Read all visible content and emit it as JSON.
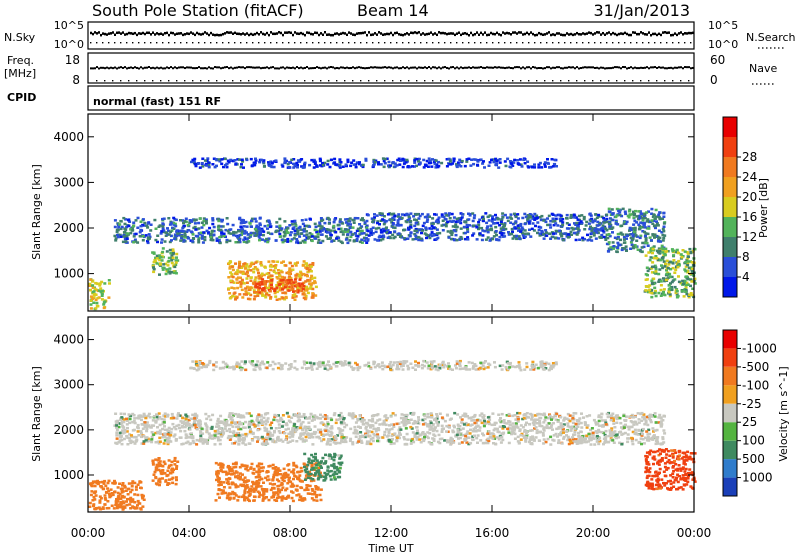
{
  "header": {
    "station": "South Pole Station (fitACF)",
    "beam": "Beam 14",
    "date": "31/Jan/2013"
  },
  "status_panel": {
    "n_sky_label": "N.Sky",
    "n_search_label": "N.Search",
    "freq_label_1": "Freq.",
    "freq_label_2": "[MHz]",
    "nave_label": "Nave",
    "cpid_label": "CPID",
    "cpid_value": "normal (fast) 151 RF",
    "noise_ticks_left": [
      "10^5",
      "10^0"
    ],
    "noise_ticks_right": [
      "10^5",
      "10^0"
    ],
    "freq_ticks": [
      "18",
      "8"
    ],
    "nave_ticks": [
      "60",
      "0"
    ]
  },
  "x_axis": {
    "label": "Time UT",
    "ticks": [
      "00:00",
      "04:00",
      "08:00",
      "12:00",
      "16:00",
      "20:00",
      "00:00"
    ]
  },
  "colors": {
    "power_scale": [
      "#0018e8",
      "#2a4fd8",
      "#3f7f6c",
      "#52b35a",
      "#d8cc20",
      "#f0a020",
      "#f07a20",
      "#f04010",
      "#e80000"
    ],
    "velocity_scale": [
      "#1a3fb8",
      "#2f7ccc",
      "#3f8a60",
      "#54b440",
      "#c8c8c0",
      "#f0a020",
      "#f07a20",
      "#f04010",
      "#e80000"
    ],
    "frame": "#000000"
  },
  "chart_data": [
    {
      "type": "heatmap",
      "title": "",
      "xlabel": "Time UT",
      "ylabel": "Slant Range [km]",
      "xlim": [
        0,
        24
      ],
      "ylim": [
        180,
        4500
      ],
      "y_ticks": [
        1000,
        2000,
        3000,
        4000
      ],
      "colorbar": {
        "label": "Power [dB]",
        "levels": [
          0,
          4,
          8,
          12,
          16,
          20,
          24,
          28,
          32
        ],
        "tick_labels": [
          "4",
          "8",
          "12",
          "16",
          "20",
          "24",
          "28"
        ]
      },
      "echo_regions": [
        {
          "t_start": 0.0,
          "t_end": 0.8,
          "range_low": 250,
          "range_high": 900,
          "power_db": 17
        },
        {
          "t_start": 2.5,
          "t_end": 3.5,
          "range_low": 1000,
          "range_high": 1600,
          "power_db": 14
        },
        {
          "t_start": 1.0,
          "t_end": 11.0,
          "range_low": 1700,
          "range_high": 2250,
          "power_db": 8
        },
        {
          "t_start": 11.0,
          "t_end": 20.5,
          "range_low": 1750,
          "range_high": 2350,
          "power_db": 7
        },
        {
          "t_start": 20.5,
          "t_end": 22.8,
          "range_low": 1500,
          "range_high": 2450,
          "power_db": 9
        },
        {
          "t_start": 5.5,
          "t_end": 9.0,
          "range_low": 450,
          "range_high": 1300,
          "power_db": 22
        },
        {
          "t_start": 6.5,
          "t_end": 8.5,
          "range_low": 600,
          "range_high": 900,
          "power_db": 29
        },
        {
          "t_start": 22.0,
          "t_end": 24.0,
          "range_low": 500,
          "range_high": 1600,
          "power_db": 14
        },
        {
          "t_start": 4.0,
          "t_end": 18.5,
          "range_low": 3350,
          "range_high": 3550,
          "power_db": 4
        }
      ]
    },
    {
      "type": "heatmap",
      "title": "",
      "xlabel": "Time UT",
      "ylabel": "Slant Range [km]",
      "xlim": [
        0,
        24
      ],
      "ylim": [
        180,
        4500
      ],
      "y_ticks": [
        1000,
        2000,
        3000,
        4000
      ],
      "colorbar": {
        "label": "Velocity [m s^-1]",
        "levels": [
          1500,
          1000,
          500,
          100,
          25,
          -25,
          -100,
          -500,
          -1000,
          -1500
        ],
        "tick_labels": [
          "1000",
          "500",
          "100",
          "25",
          "-25",
          "-100",
          "-500",
          "-1000"
        ]
      },
      "echo_regions": [
        {
          "t_start": 0.0,
          "t_end": 2.2,
          "range_low": 250,
          "range_high": 900,
          "velocity": -300
        },
        {
          "t_start": 2.5,
          "t_end": 3.5,
          "range_low": 800,
          "range_high": 1400,
          "velocity": -300
        },
        {
          "t_start": 5.0,
          "t_end": 9.2,
          "range_low": 450,
          "range_high": 1300,
          "velocity": -300
        },
        {
          "t_start": 8.5,
          "t_end": 10.0,
          "range_low": 900,
          "range_high": 1500,
          "velocity": 200
        },
        {
          "t_start": 1.0,
          "t_end": 22.8,
          "range_low": 1700,
          "range_high": 2400,
          "velocity": 0
        },
        {
          "t_start": 22.0,
          "t_end": 24.0,
          "range_low": 700,
          "range_high": 1600,
          "velocity": -600
        },
        {
          "t_start": 4.0,
          "t_end": 18.5,
          "range_low": 3350,
          "range_high": 3550,
          "velocity": 0
        }
      ]
    }
  ]
}
